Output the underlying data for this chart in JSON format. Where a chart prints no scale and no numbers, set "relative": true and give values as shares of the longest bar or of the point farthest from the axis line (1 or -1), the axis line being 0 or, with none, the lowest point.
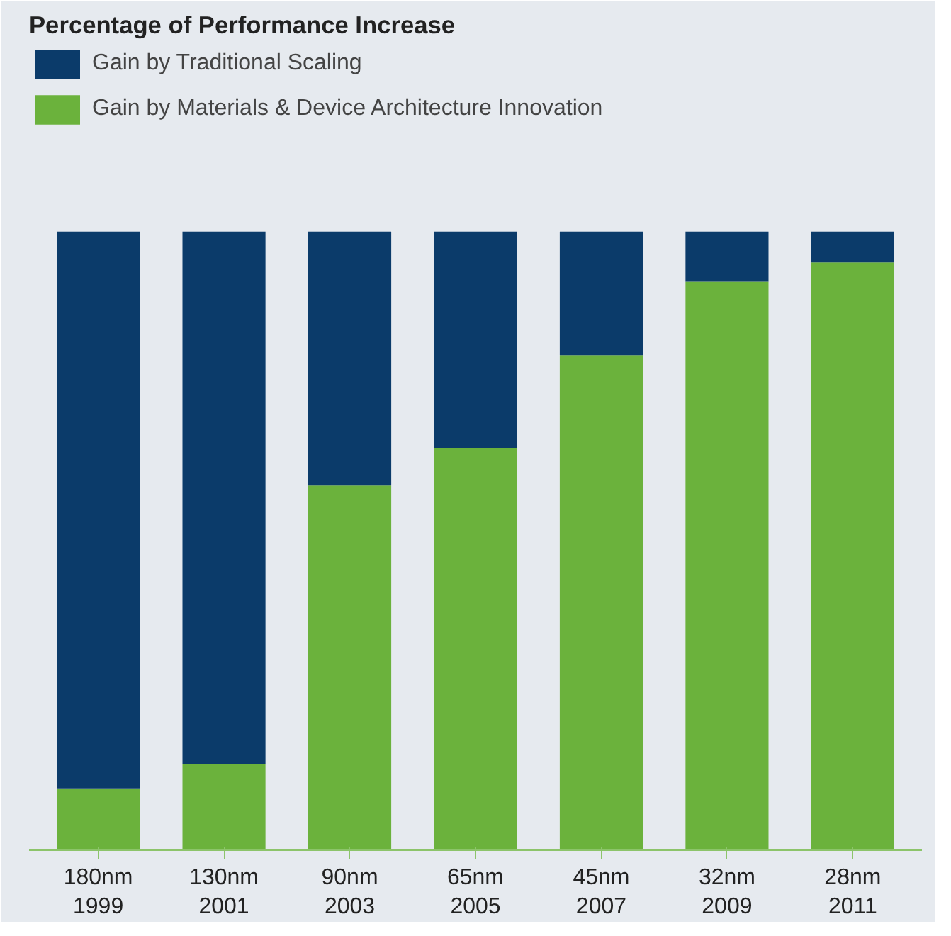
{
  "chart_data": {
    "type": "bar",
    "title": "Percentage of Performance Increase",
    "categories": [
      "180nm\n1999",
      "130nm\n2001",
      "90nm\n2003",
      "65nm\n2005",
      "45nm\n2007",
      "32nm\n2009",
      "28nm\n2011"
    ],
    "stacked": true,
    "relative": true,
    "legend": "top left",
    "series": [
      {
        "name": "Gain by Materials & Device Architecture Innovation",
        "color": "#6bb23c",
        "values": [
          0.1,
          0.14,
          0.59,
          0.65,
          0.8,
          0.92,
          0.95
        ]
      },
      {
        "name": "Gain by Traditional Scaling",
        "color": "#0b3b6a",
        "values": [
          0.9,
          0.86,
          0.41,
          0.35,
          0.2,
          0.08,
          0.05
        ]
      }
    ]
  }
}
